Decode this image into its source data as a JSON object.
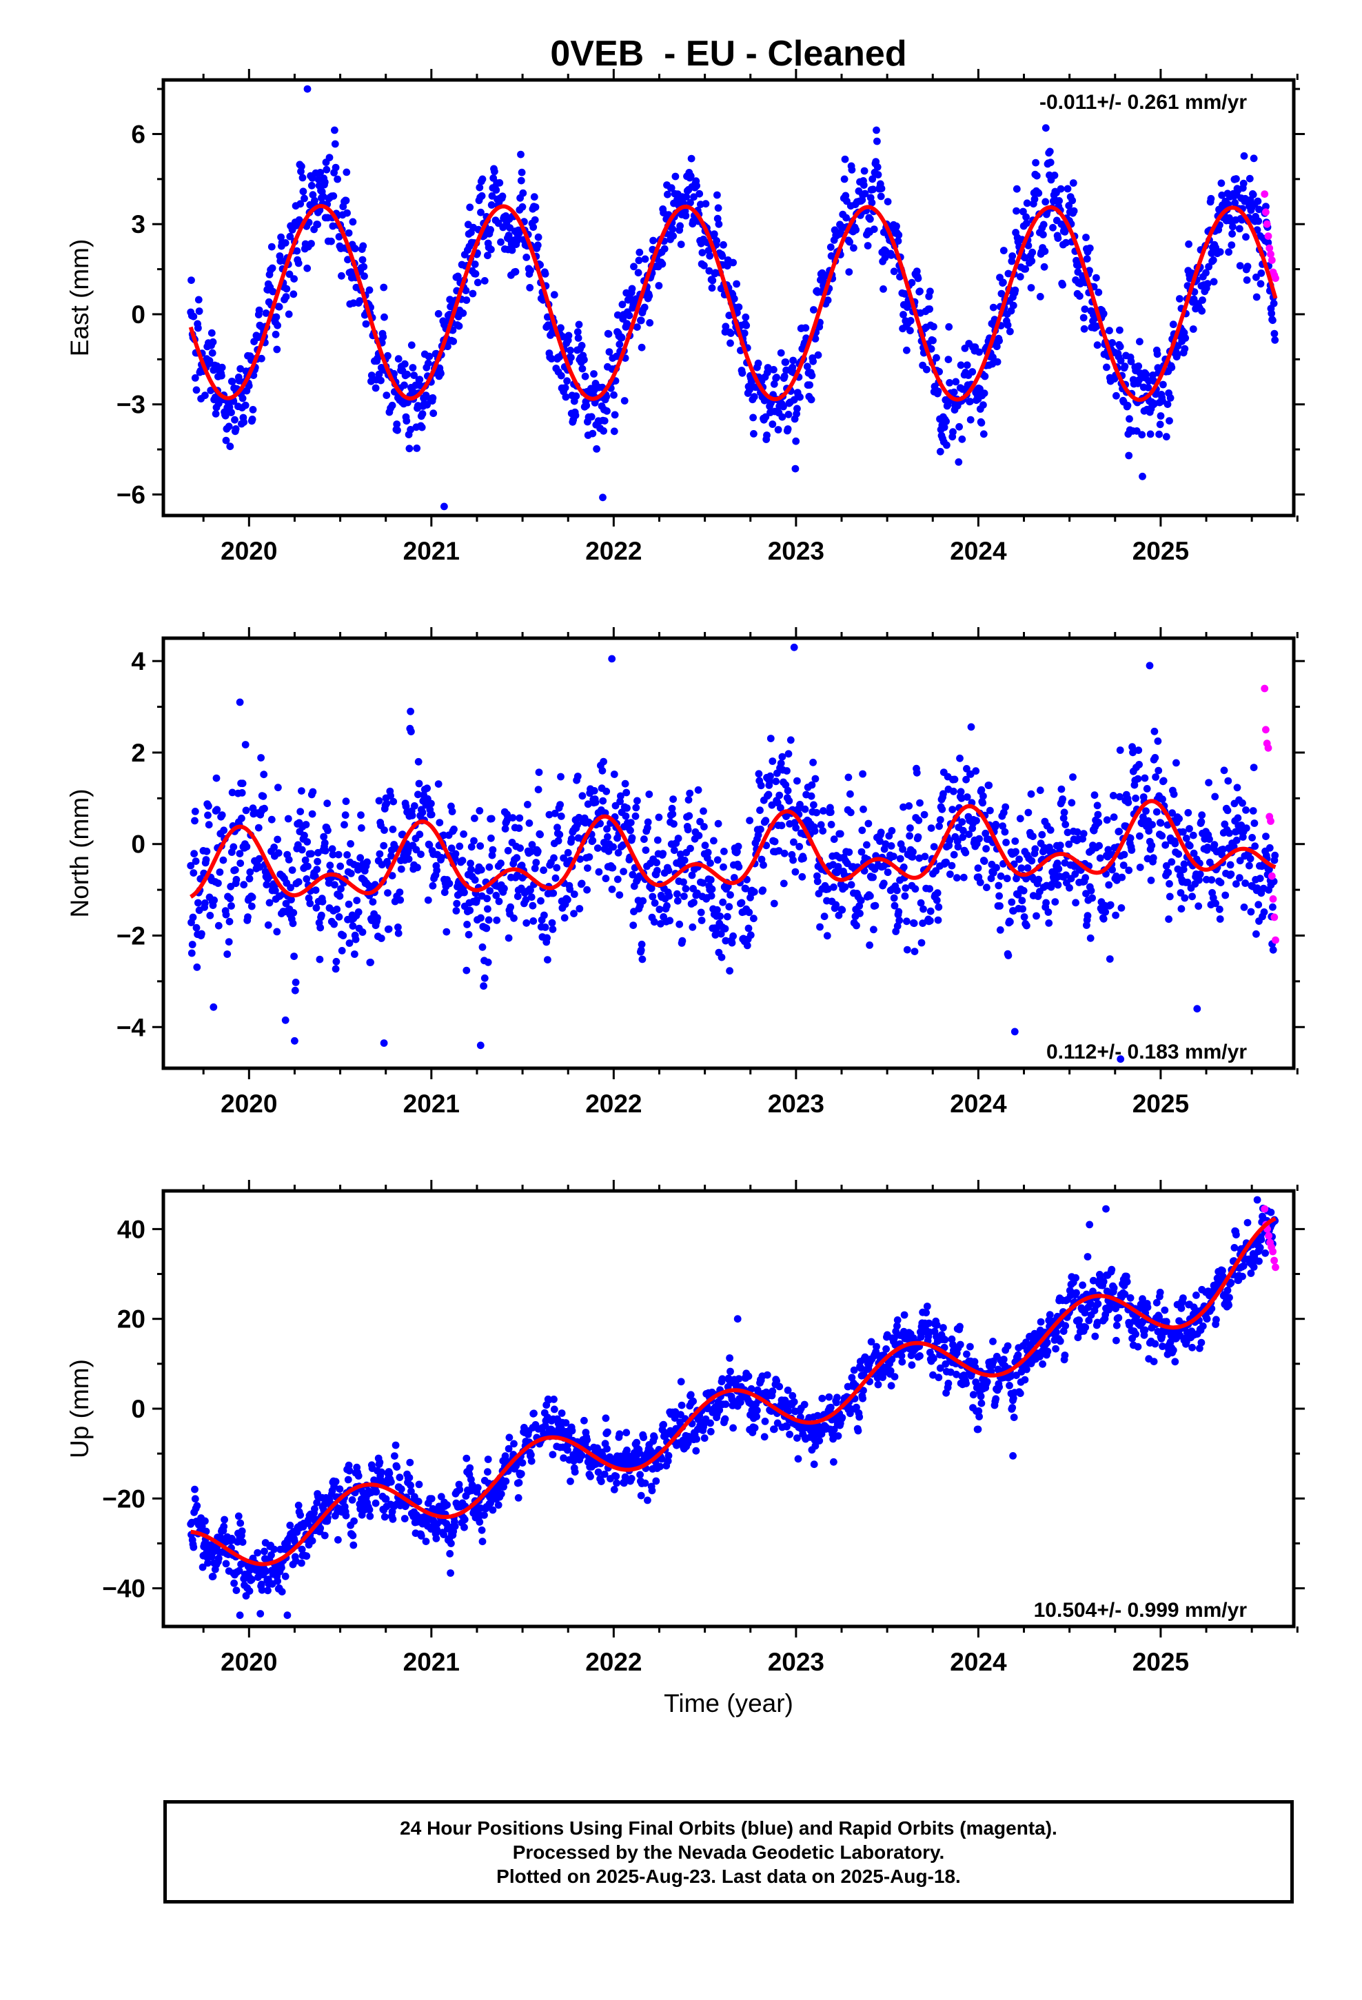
{
  "title": "0VEB  - EU - Cleaned",
  "xlabel": "Time (year)",
  "footer": {
    "line1": "24 Hour Positions Using Final Orbits (blue) and Rapid Orbits (magenta).",
    "line2": "Processed by the Nevada Geodetic Laboratory.",
    "line3": "Plotted on 2025-Aug-23. Last data on 2025-Aug-18."
  },
  "colors": {
    "final": "#0000ff",
    "rapid": "#ff00ff",
    "model": "#ff0000",
    "frame": "#000000"
  },
  "chart_data": [
    {
      "type": "scatter",
      "panel": "east",
      "ylabel": "East (mm)",
      "rate_label": "-0.011+/- 0.261 mm/yr",
      "rate_position": "top-right",
      "xlim": [
        2019.53,
        2025.73
      ],
      "ylim": [
        -6.7,
        7.8
      ],
      "x_ticks": [
        2020,
        2021,
        2022,
        2023,
        2024,
        2025
      ],
      "y_ticks": [
        -6,
        -3,
        0,
        3,
        6
      ],
      "model": {
        "annual_amp": 3.2,
        "annual_peak": 2020.39,
        "semiannual_amp": 0.05,
        "semiannual_peak": 0.0,
        "trend": -0.011,
        "offset": 0.4,
        "wiggles": []
      },
      "scatter_sigma": 0.85,
      "data_start": 2019.68,
      "data_end": 2025.63,
      "rapid_start": 2025.57,
      "rapid_values": [
        4.0,
        3.4,
        3.0,
        2.6,
        2.2,
        2.0,
        1.8,
        1.4,
        1.3,
        1.2
      ],
      "extreme_points": [
        [
          2020.32,
          7.5
        ],
        [
          2021.07,
          -6.4
        ],
        [
          2021.94,
          -6.1
        ],
        [
          2024.37,
          6.2
        ],
        [
          2024.9,
          -5.4
        ]
      ]
    },
    {
      "type": "scatter",
      "panel": "north",
      "ylabel": "North (mm)",
      "rate_label": "0.112+/- 0.183 mm/yr",
      "rate_position": "bottom-right",
      "xlim": [
        2019.53,
        2025.73
      ],
      "ylim": [
        -4.9,
        4.5
      ],
      "x_ticks": [
        2020,
        2021,
        2022,
        2023,
        2024,
        2025
      ],
      "y_ticks": [
        -4,
        -2,
        0,
        2,
        4
      ],
      "model": {
        "annual_amp": 0.55,
        "annual_peak": 2019.95,
        "semiannual_amp": 0.45,
        "semiannual_peak": 2019.95,
        "trend": 0.112,
        "offset": -0.65,
        "wiggles": []
      },
      "scatter_sigma": 0.8,
      "data_start": 2019.68,
      "data_end": 2025.63,
      "rapid_start": 2025.57,
      "rapid_values": [
        3.4,
        2.5,
        2.2,
        2.1,
        0.6,
        0.5,
        -0.7,
        -1.2,
        -1.6,
        -2.1
      ],
      "extreme_points": [
        [
          2019.95,
          3.1
        ],
        [
          2020.2,
          -3.85
        ],
        [
          2020.74,
          -4.35
        ],
        [
          2021.27,
          -4.4
        ],
        [
          2021.99,
          4.05
        ],
        [
          2022.99,
          4.3
        ],
        [
          2024.94,
          3.9
        ],
        [
          2024.78,
          -4.7
        ],
        [
          2024.2,
          -4.1
        ],
        [
          2025.2,
          -3.6
        ]
      ]
    },
    {
      "type": "scatter",
      "panel": "up",
      "ylabel": "Up (mm)",
      "rate_label": "10.504+/- 0.999 mm/yr",
      "rate_position": "bottom-right",
      "xlim": [
        2019.53,
        2025.73
      ],
      "ylim": [
        -48.5,
        48.5
      ],
      "x_ticks": [
        2020,
        2021,
        2022,
        2023,
        2024,
        2025
      ],
      "y_ticks": [
        -40,
        -20,
        0,
        20,
        40
      ],
      "model": {
        "annual_amp": 6.0,
        "annual_peak": 2020.62,
        "semiannual_amp": 0.0,
        "semiannual_peak": 0.0,
        "trend": 10.504,
        "offset": -33.0,
        "wiggles": [
          [
            2025.45,
            0.1,
            8.0
          ]
        ]
      },
      "scatter_sigma": 3.6,
      "data_start": 2019.68,
      "data_end": 2025.63,
      "rapid_start": 2025.57,
      "rapid_values": [
        44.5,
        41.0,
        40.0,
        38.5,
        37.0,
        36.0,
        35.0,
        33.0,
        31.5
      ],
      "extreme_points": [
        [
          2020.21,
          -46.0
        ],
        [
          2019.95,
          -46.0
        ],
        [
          2024.61,
          41.0
        ],
        [
          2024.7,
          44.5
        ],
        [
          2025.53,
          46.5
        ],
        [
          2024.19,
          -10.5
        ],
        [
          2022.68,
          20.0
        ]
      ]
    }
  ]
}
